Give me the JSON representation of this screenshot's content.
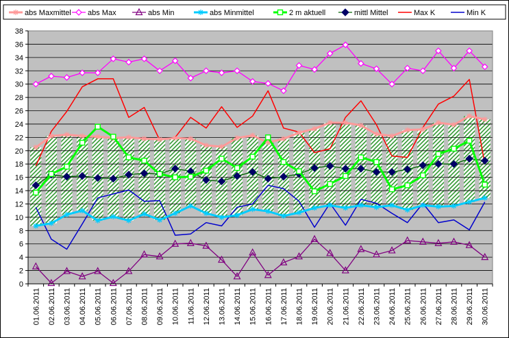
{
  "chart_data": {
    "type": "line",
    "title": "",
    "xlabel": "",
    "ylabel": "",
    "ylim": [
      0,
      38
    ],
    "y_ticks": [
      0,
      2,
      4,
      6,
      8,
      10,
      12,
      14,
      16,
      18,
      20,
      22,
      24,
      26,
      28,
      30,
      32,
      34,
      36,
      38
    ],
    "grid": "horizontal",
    "legend_position": "top",
    "plot_background": "#c0c0c0",
    "band_color": "#339933",
    "categories": [
      "01.06.2011",
      "02.06.2011",
      "03.06.2011",
      "04.06.2011",
      "05.06.2011",
      "06.06.2011",
      "07.06.2011",
      "08.06.2011",
      "09.06.2011",
      "10.06.2011",
      "11.06.2011",
      "12.06.2011",
      "13.06.2011",
      "14.06.2011",
      "15.06.2011",
      "16.06.2011",
      "17.06.2011",
      "18.06.2011",
      "19.06.2011",
      "20.06.2011",
      "21.06.2011",
      "22.06.2011",
      "23.06.2011",
      "24.06.2011",
      "25.06.2011",
      "26.06.2011",
      "27.06.2011",
      "28.06.2011",
      "29.06.2011",
      "30.06.2011"
    ],
    "series": [
      {
        "name": "abs Maxmittel",
        "color": "#ff9999",
        "marker": "star",
        "width": 3,
        "values": [
          20.5,
          22.2,
          22.4,
          22.2,
          22.1,
          21.9,
          22.0,
          21.8,
          21.7,
          21.9,
          21.8,
          20.8,
          20.6,
          21.9,
          22.3,
          21.2,
          21.8,
          22.7,
          23.3,
          24.2,
          24.2,
          23.8,
          22.5,
          22.2,
          23.1,
          23.2,
          24.2,
          23.9,
          25.2,
          24.7
        ]
      },
      {
        "name": "abs Max",
        "color": "#ff00ff",
        "marker": "diamond-open",
        "width": 1.3,
        "values": [
          30.0,
          31.2,
          31.0,
          31.7,
          31.7,
          33.8,
          33.3,
          33.8,
          32.0,
          33.5,
          30.9,
          32.0,
          31.7,
          32.0,
          30.4,
          30.1,
          29.0,
          32.8,
          32.2,
          34.6,
          35.9,
          33.1,
          32.3,
          30.0,
          32.4,
          32.0,
          35.0,
          32.4,
          35.0,
          32.6
        ]
      },
      {
        "name": "abs Min",
        "color": "#800080",
        "marker": "triangle-open",
        "width": 1.3,
        "values": [
          2.6,
          0.1,
          1.9,
          1.1,
          1.9,
          0.1,
          1.9,
          4.4,
          4.1,
          6.0,
          6.1,
          5.7,
          3.6,
          1.1,
          4.7,
          1.3,
          3.2,
          4.1,
          6.7,
          4.6,
          2.0,
          5.2,
          4.4,
          5.0,
          6.5,
          6.3,
          6.1,
          6.3,
          5.8,
          4.0
        ]
      },
      {
        "name": "abs Minmittel",
        "color": "#00ccff",
        "marker": "star",
        "width": 3,
        "values": [
          8.7,
          9.1,
          10.4,
          11.0,
          9.5,
          10.1,
          9.5,
          10.5,
          9.6,
          10.6,
          11.7,
          10.6,
          10.0,
          10.3,
          11.2,
          10.9,
          10.2,
          10.7,
          11.4,
          11.8,
          11.4,
          11.8,
          11.5,
          11.8,
          11.1,
          11.8,
          11.6,
          11.7,
          12.3,
          12.9
        ]
      },
      {
        "name": "2 m aktuell",
        "color": "#00ff00",
        "marker": "square-open",
        "width": 3,
        "values": [
          13.7,
          16.5,
          17.6,
          21.2,
          23.6,
          22.1,
          19.0,
          18.5,
          16.5,
          16.0,
          16.1,
          17.0,
          18.8,
          17.4,
          19.1,
          22.0,
          18.3,
          16.9,
          13.9,
          15.0,
          16.2,
          19.0,
          18.3,
          14.2,
          14.8,
          16.3,
          19.5,
          20.3,
          21.5,
          14.9
        ]
      },
      {
        "name": "mittl Mittel",
        "color": "#006400",
        "marker": "diamond",
        "width": 1.3,
        "values": [
          14.8,
          16.4,
          16.1,
          16.2,
          15.9,
          15.8,
          16.4,
          16.6,
          16.5,
          17.3,
          16.9,
          15.6,
          15.4,
          16.2,
          16.8,
          15.8,
          16.1,
          16.5,
          17.4,
          17.7,
          17.3,
          17.3,
          16.8,
          16.8,
          17.2,
          17.8,
          18.0,
          18.0,
          18.8,
          18.5
        ]
      },
      {
        "name": "Max K",
        "color": "#ff0000",
        "marker": "none",
        "width": 1.5,
        "values": [
          17.7,
          22.9,
          25.9,
          29.6,
          30.8,
          30.8,
          25.0,
          26.5,
          21.6,
          22.0,
          25.0,
          23.4,
          26.6,
          23.5,
          25.2,
          29.0,
          23.4,
          22.8,
          19.7,
          20.3,
          25.0,
          27.5,
          23.9,
          19.2,
          19.0,
          23.5,
          27.0,
          28.2,
          30.7,
          18.0
        ]
      },
      {
        "name": "Min K",
        "color": "#0000cc",
        "marker": "none",
        "width": 1.5,
        "values": [
          11.5,
          6.7,
          5.2,
          9.0,
          12.9,
          13.5,
          14.1,
          12.4,
          12.5,
          7.3,
          7.5,
          9.2,
          8.7,
          11.5,
          12.0,
          14.8,
          14.3,
          12.4,
          8.5,
          12.1,
          8.8,
          12.7,
          12.1,
          10.6,
          9.2,
          12.1,
          9.2,
          9.6,
          8.1,
          12.3
        ]
      }
    ]
  }
}
